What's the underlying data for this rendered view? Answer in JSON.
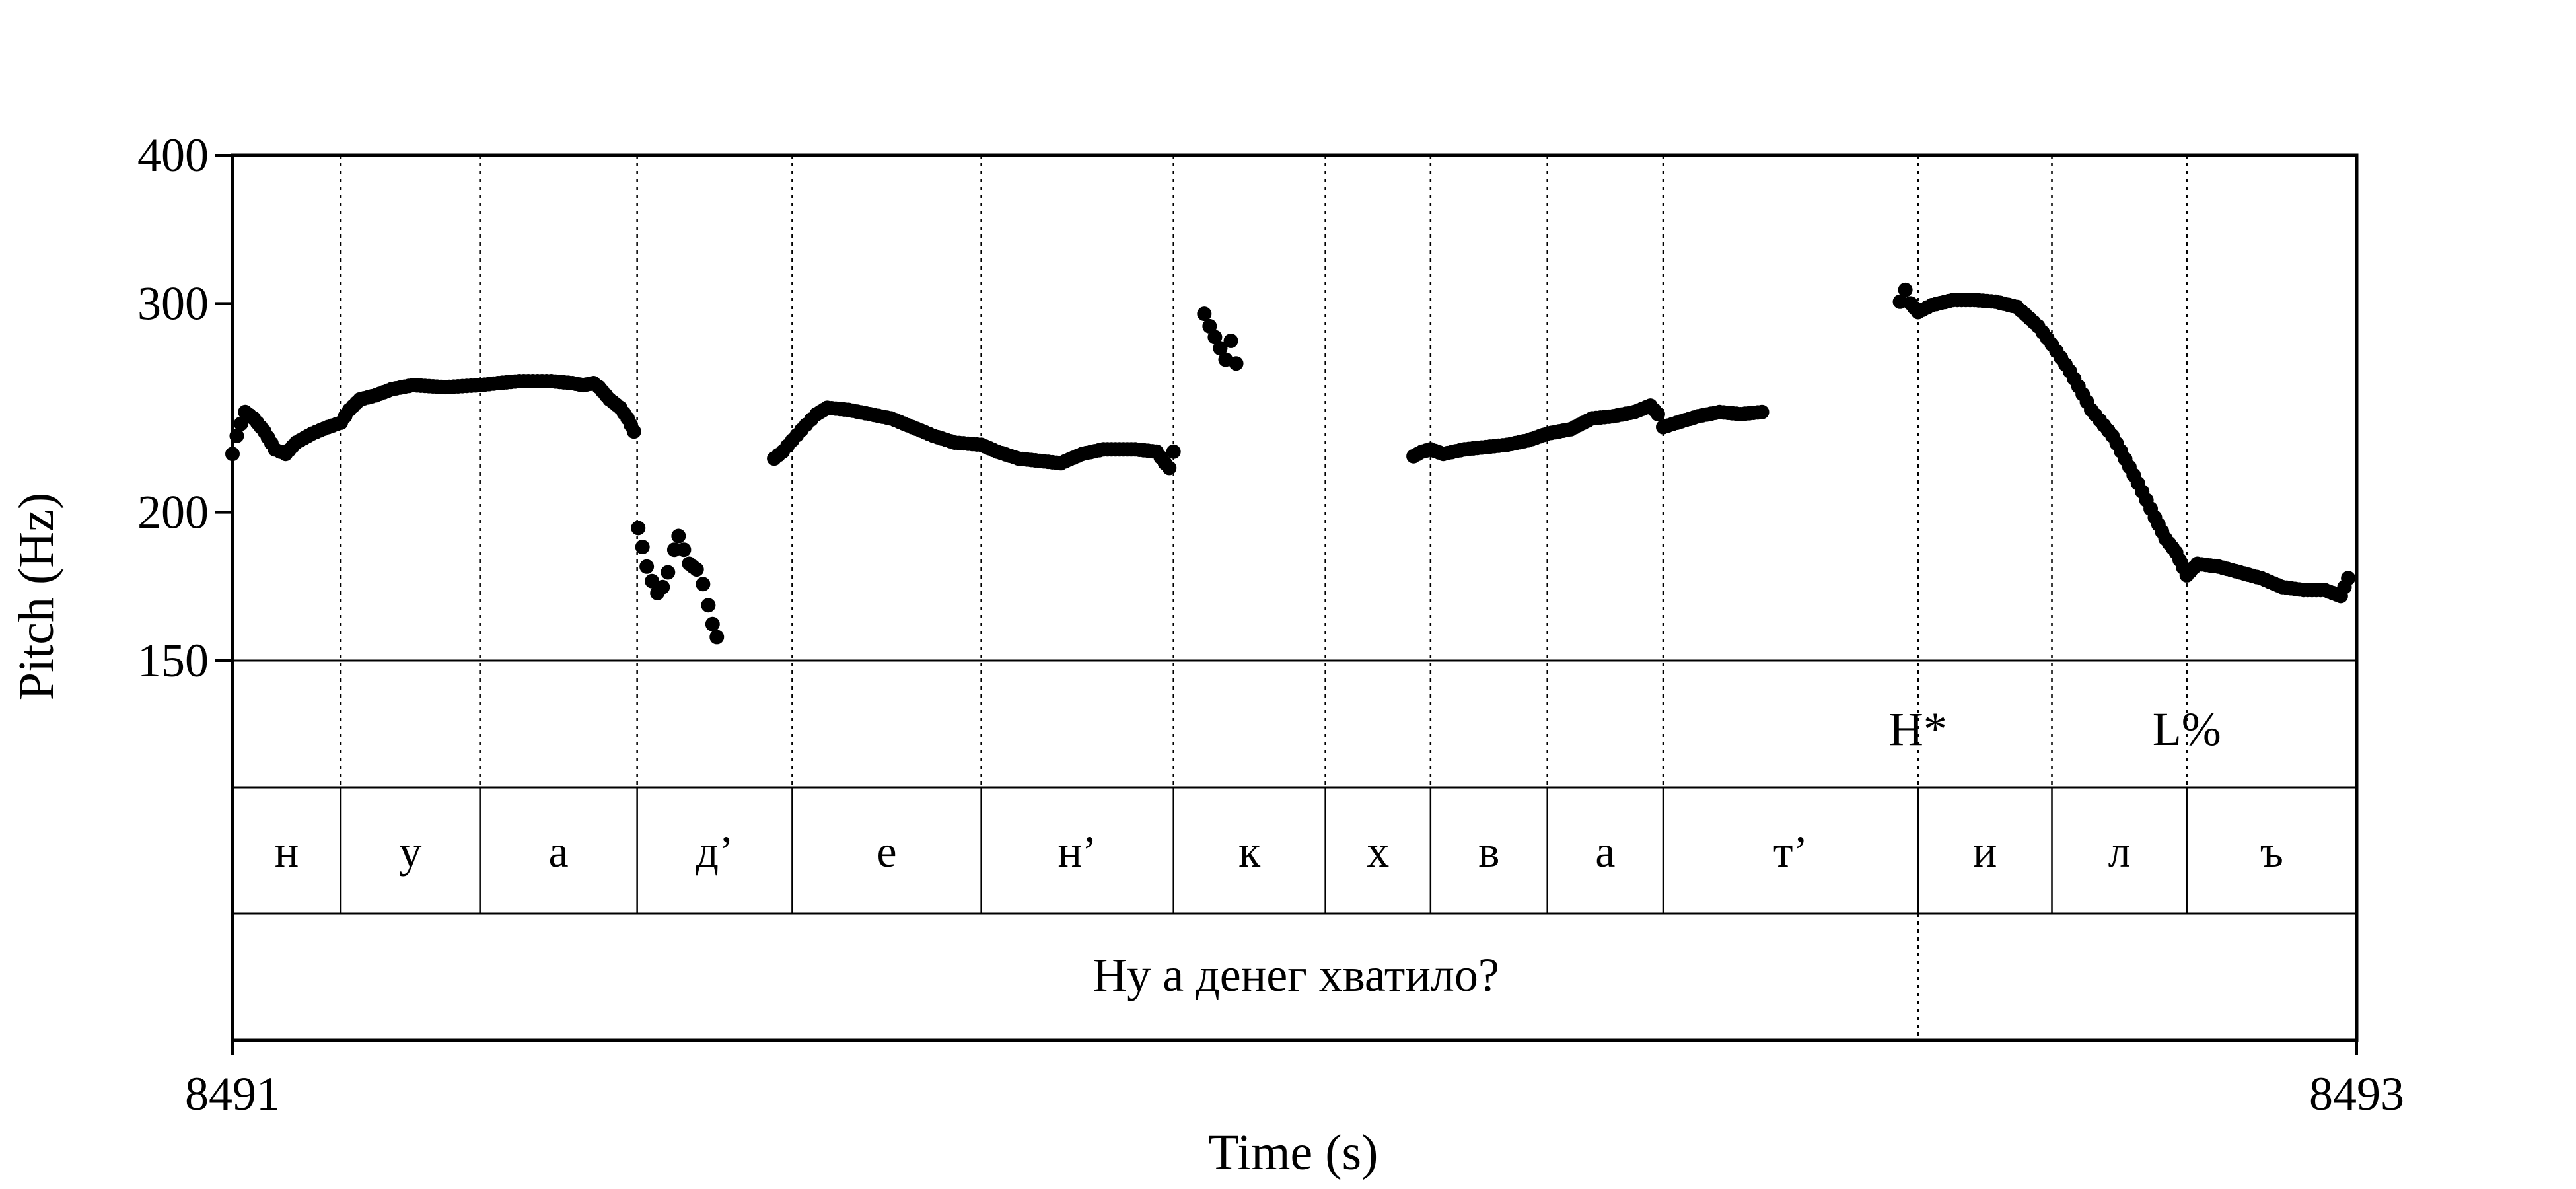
{
  "chart_data": {
    "type": "scatter",
    "title": "",
    "xlabel": "Time (s)",
    "ylabel": "Pitch (Hz)",
    "x_ticks": [
      "8491",
      "8493"
    ],
    "xlim": [
      8491,
      8493
    ],
    "ylim": [
      150,
      400
    ],
    "y_scale": "log",
    "y_ticks": [
      {
        "value": 150,
        "label": "150"
      },
      {
        "value": 200,
        "label": "200"
      },
      {
        "value": 300,
        "label": "300"
      },
      {
        "value": 400,
        "label": "400"
      }
    ],
    "tones": [
      {
        "label": "H*",
        "time": 8492.587
      },
      {
        "label": "L%",
        "time": 8492.84
      }
    ],
    "segments": [
      {
        "label": "н",
        "start": 8491.0,
        "end": 8491.102
      },
      {
        "label": "у",
        "start": 8491.102,
        "end": 8491.233
      },
      {
        "label": "а",
        "start": 8491.233,
        "end": 8491.381
      },
      {
        "label": "д’",
        "start": 8491.381,
        "end": 8491.527
      },
      {
        "label": "е",
        "start": 8491.527,
        "end": 8491.705
      },
      {
        "label": "н’",
        "start": 8491.705,
        "end": 8491.886
      },
      {
        "label": "к",
        "start": 8491.886,
        "end": 8492.029
      },
      {
        "label": "х",
        "start": 8492.029,
        "end": 8492.128
      },
      {
        "label": "в",
        "start": 8492.128,
        "end": 8492.238
      },
      {
        "label": "а",
        "start": 8492.238,
        "end": 8492.347
      },
      {
        "label": "т’",
        "start": 8492.347,
        "end": 8492.587
      },
      {
        "label": "и",
        "start": 8492.587,
        "end": 8492.713
      },
      {
        "label": "л",
        "start": 8492.713,
        "end": 8492.84
      },
      {
        "label": "ъ",
        "start": 8492.84,
        "end": 8493.0
      }
    ],
    "sentence": {
      "label": "Ну а денег хватило?",
      "start": 8491.0,
      "end": 8492.587
    },
    "pitch_segments": [
      [
        [
          8491.0,
          224
        ],
        [
          8491.004,
          232
        ],
        [
          8491.012,
          243
        ],
        [
          8491.02,
          240
        ],
        [
          8491.03,
          234
        ],
        [
          8491.04,
          226
        ],
        [
          8491.05,
          224
        ],
        [
          8491.06,
          229
        ],
        [
          8491.075,
          233
        ],
        [
          8491.09,
          236
        ],
        [
          8491.102,
          238
        ],
        [
          8491.11,
          244
        ],
        [
          8491.12,
          249
        ],
        [
          8491.135,
          251
        ],
        [
          8491.15,
          254
        ],
        [
          8491.17,
          256
        ],
        [
          8491.2,
          255
        ],
        [
          8491.233,
          256
        ],
        [
          8491.25,
          257
        ],
        [
          8491.27,
          258
        ],
        [
          8491.3,
          258
        ],
        [
          8491.32,
          257
        ],
        [
          8491.33,
          256
        ],
        [
          8491.34,
          257
        ],
        [
          8491.345,
          255
        ],
        [
          8491.355,
          249
        ],
        [
          8491.365,
          245
        ],
        [
          8491.372,
          240
        ],
        [
          8491.378,
          234
        ]
      ],
      [
        [
          8491.382,
          194
        ],
        [
          8491.386,
          187
        ],
        [
          8491.39,
          180
        ],
        [
          8491.395,
          175
        ],
        [
          8491.4,
          171
        ],
        [
          8491.405,
          173
        ],
        [
          8491.41,
          178
        ],
        [
          8491.416,
          186
        ],
        [
          8491.42,
          191
        ],
        [
          8491.425,
          186
        ],
        [
          8491.43,
          181
        ],
        [
          8491.437,
          179
        ],
        [
          8491.443,
          174
        ],
        [
          8491.448,
          167
        ],
        [
          8491.452,
          161
        ],
        [
          8491.456,
          157
        ]
      ],
      [
        [
          8491.51,
          222
        ],
        [
          8491.518,
          225
        ],
        [
          8491.527,
          230
        ],
        [
          8491.54,
          237
        ],
        [
          8491.55,
          242
        ],
        [
          8491.56,
          245
        ],
        [
          8491.58,
          244
        ],
        [
          8491.6,
          242
        ],
        [
          8491.62,
          240
        ],
        [
          8491.64,
          236
        ],
        [
          8491.66,
          232
        ],
        [
          8491.68,
          229
        ],
        [
          8491.705,
          228
        ],
        [
          8491.72,
          225
        ],
        [
          8491.74,
          222
        ],
        [
          8491.76,
          221
        ],
        [
          8491.78,
          220
        ],
        [
          8491.8,
          224
        ],
        [
          8491.82,
          226
        ],
        [
          8491.85,
          226
        ],
        [
          8491.87,
          225
        ],
        [
          8491.878,
          220
        ],
        [
          8491.882,
          218
        ],
        [
          8491.886,
          225
        ]
      ],
      [
        [
          8491.915,
          294
        ],
        [
          8491.92,
          287
        ],
        [
          8491.925,
          281
        ],
        [
          8491.93,
          275
        ],
        [
          8491.935,
          269
        ],
        [
          8491.94,
          279
        ],
        [
          8491.945,
          267
        ]
      ],
      [
        [
          8492.112,
          223
        ],
        [
          8492.12,
          225
        ],
        [
          8492.128,
          226
        ],
        [
          8492.14,
          224
        ],
        [
          8492.16,
          226
        ],
        [
          8492.18,
          227
        ],
        [
          8492.2,
          228
        ],
        [
          8492.22,
          230
        ],
        [
          8492.238,
          233
        ],
        [
          8492.26,
          235
        ],
        [
          8492.28,
          240
        ],
        [
          8492.3,
          241
        ],
        [
          8492.32,
          243
        ],
        [
          8492.335,
          246
        ],
        [
          8492.342,
          242
        ],
        [
          8492.347,
          236
        ],
        [
          8492.36,
          238
        ],
        [
          8492.38,
          241
        ],
        [
          8492.4,
          243
        ],
        [
          8492.42,
          242
        ],
        [
          8492.44,
          243
        ]
      ],
      [
        [
          8492.57,
          301
        ],
        [
          8492.575,
          308
        ],
        [
          8492.58,
          300
        ],
        [
          8492.587,
          295
        ],
        [
          8492.6,
          299
        ],
        [
          8492.62,
          302
        ],
        [
          8492.64,
          302
        ],
        [
          8492.66,
          301
        ],
        [
          8492.68,
          298
        ],
        [
          8492.7,
          287
        ],
        [
          8492.713,
          277
        ],
        [
          8492.73,
          263
        ],
        [
          8492.75,
          244
        ],
        [
          8492.77,
          232
        ],
        [
          8492.79,
          215
        ],
        [
          8492.81,
          198
        ],
        [
          8492.82,
          190
        ],
        [
          8492.83,
          185
        ],
        [
          8492.84,
          177
        ],
        [
          8492.85,
          181
        ],
        [
          8492.87,
          180
        ],
        [
          8492.89,
          178
        ],
        [
          8492.91,
          176
        ],
        [
          8492.93,
          173
        ],
        [
          8492.95,
          172
        ],
        [
          8492.97,
          172
        ],
        [
          8492.985,
          170
        ],
        [
          8492.992,
          176
        ]
      ]
    ]
  }
}
